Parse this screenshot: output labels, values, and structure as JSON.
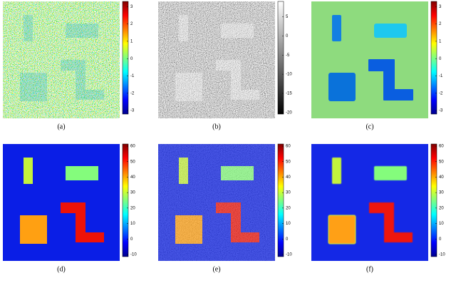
{
  "figure": {
    "panels": [
      {
        "caption": "(a)",
        "colorbar": {
          "colormap": "jet",
          "lim": [
            -3.2,
            3.3
          ],
          "ticks": [
            3,
            2,
            1,
            0,
            -1,
            -2,
            -3
          ]
        }
      },
      {
        "caption": "(b)",
        "colorbar": {
          "colormap": "gray",
          "lim": [
            -20.4,
            9
          ],
          "ticks": [
            5,
            0,
            -5,
            -10,
            -15,
            -20
          ]
        }
      },
      {
        "caption": "(c)",
        "colorbar": {
          "colormap": "jet",
          "lim": [
            -3.2,
            3.3
          ],
          "ticks": [
            3,
            2,
            1,
            0,
            -1,
            -2,
            -3
          ]
        }
      },
      {
        "caption": "(d)",
        "colorbar": {
          "colormap": "jet",
          "lim": [
            -11.4,
            61.4
          ],
          "ticks": [
            60,
            50,
            40,
            30,
            20,
            10,
            0,
            -10
          ]
        }
      },
      {
        "caption": "(e)",
        "colorbar": {
          "colormap": "jet",
          "lim": [
            -11.4,
            61.4
          ],
          "ticks": [
            60,
            50,
            40,
            30,
            20,
            10,
            0,
            -10
          ]
        }
      },
      {
        "caption": "(f)",
        "colorbar": {
          "colormap": "jet",
          "lim": [
            -11.4,
            61.4
          ],
          "ticks": [
            60,
            50,
            40,
            30,
            20,
            10,
            0,
            -10
          ]
        }
      }
    ]
  }
}
